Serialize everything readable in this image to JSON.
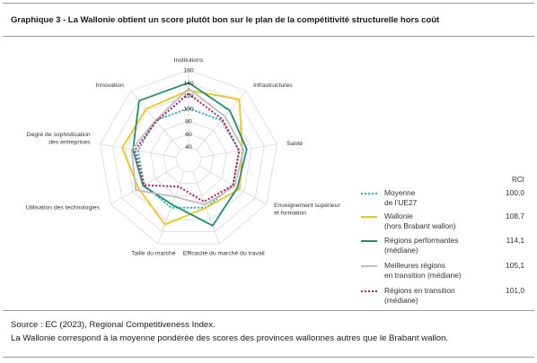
{
  "header": {
    "title": "Graphique 3 - La Wallonie obtient un score plutôt bon sur le plan de la compétitivité structurelle hors coût"
  },
  "footer": {
    "source": "Source : EC (2023), Regional Competitiveness Index.",
    "note": "La Wallonie correspond à la moyenne pondérée des scores des provinces wallonnes autres que le Brabant wallon."
  },
  "legend": {
    "header": "RCI",
    "items": [
      {
        "label_lines": [
          "Moyenne",
          "de l’UE27"
        ],
        "value": "100,0"
      },
      {
        "label_lines": [
          "Wallonie",
          "(hors Brabant wallon)"
        ],
        "value": "108,7"
      },
      {
        "label_lines": [
          "Régions performantes",
          "(médiane)"
        ],
        "value": "114,1"
      },
      {
        "label_lines": [
          "Meilleures régions",
          "en transition (médiane)"
        ],
        "value": "105,1"
      },
      {
        "label_lines": [
          "Régions en transition",
          "(médiane)"
        ],
        "value": "101,0"
      }
    ]
  },
  "chart_data": {
    "type": "radar",
    "axes": [
      "Institutions",
      "Infrastructures",
      "Santé",
      "Enseignement supérieur et formation",
      "Efficacité du marché du travail",
      "Taille du marché",
      "Utilisation des technologies",
      "Degré de sophistication des entreprises",
      "Innovation"
    ],
    "axis_label_lines": [
      [
        "Institutions"
      ],
      [
        "Infrastructures"
      ],
      [
        "Santé"
      ],
      [
        "Enseignement supérieur",
        "et formation"
      ],
      [
        "Efficacité du marché du travail"
      ],
      [
        "Taille du marché"
      ],
      [
        "Utilisation des technologies"
      ],
      [
        "Degré de sophistication",
        "des entreprises"
      ],
      [
        "Innovation"
      ]
    ],
    "ticks": [
      40,
      60,
      80,
      100,
      120,
      140,
      160
    ],
    "rlim": [
      20,
      160
    ],
    "series": [
      {
        "name": "Moyenne de l’UE27",
        "color": "#27b5c9",
        "dash": "dotted",
        "values": [
          100,
          100,
          100,
          100,
          100,
          100,
          100,
          100,
          100
        ]
      },
      {
        "name": "Wallonie (hors Brabant wallon)",
        "color": "#f2c418",
        "dash": "solid",
        "values": [
          128,
          143,
          105,
          112,
          100,
          128,
          110,
          125,
          123
        ]
      },
      {
        "name": "Régions performantes (médiane)",
        "color": "#1e8f75",
        "dash": "solid",
        "values": [
          140,
          120,
          112,
          108,
          130,
          95,
          102,
          108,
          140
        ]
      },
      {
        "name": "Meilleures régions en transition (médiane)",
        "color": "#bdbdbd",
        "dash": "solid",
        "values": [
          131,
          108,
          107,
          103,
          95,
          82,
          115,
          110,
          100
        ]
      },
      {
        "name": "Régions en transition (médiane)",
        "color": "#c2185b",
        "dash": "dotted",
        "values": [
          123,
          102,
          100,
          100,
          90,
          65,
          100,
          105,
          98
        ]
      }
    ]
  }
}
